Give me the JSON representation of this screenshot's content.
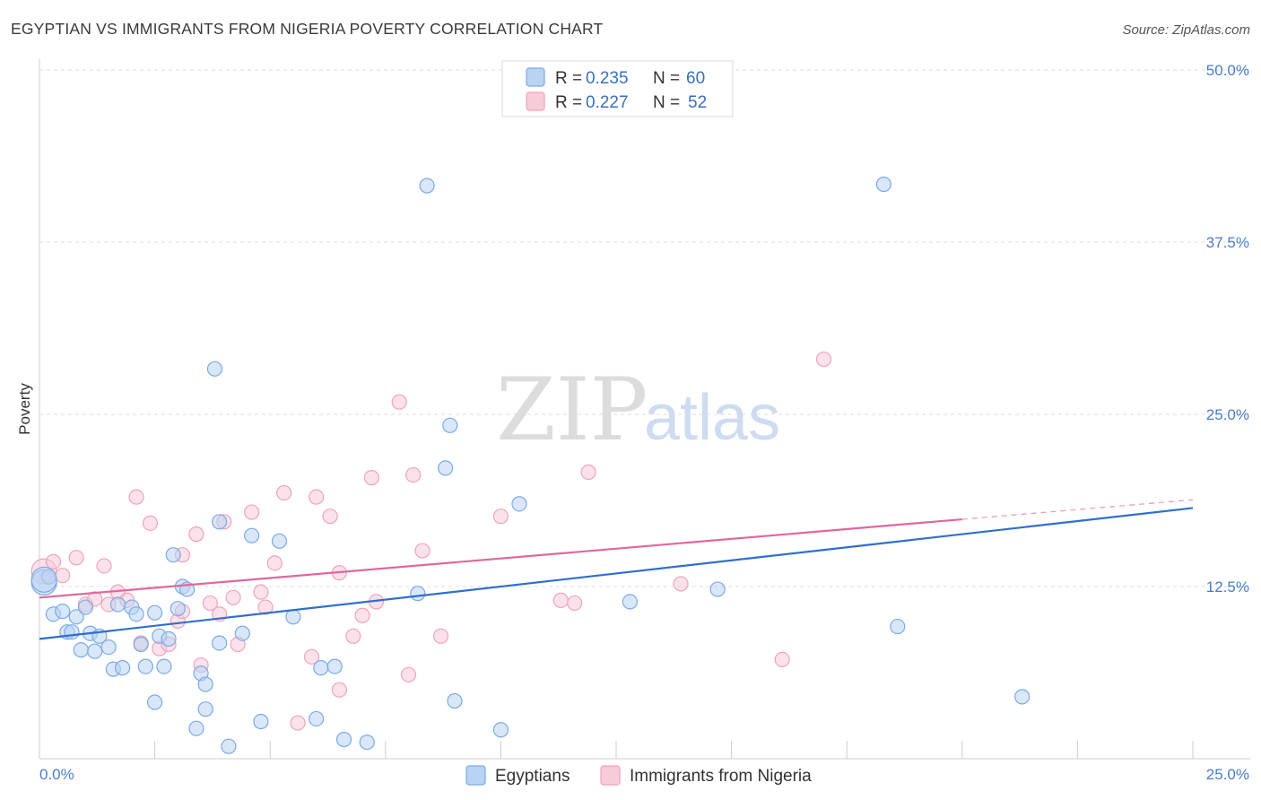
{
  "chart_data": {
    "type": "scatter",
    "title": "EGYPTIAN VS IMMIGRANTS FROM NIGERIA POVERTY CORRELATION CHART",
    "source": "Source: ZipAtlas.com",
    "xlabel": "",
    "ylabel": "Poverty",
    "xlim": [
      0,
      25
    ],
    "ylim": [
      0,
      50
    ],
    "x_tick_labels": {
      "left": "0.0%",
      "right": "25.0%"
    },
    "y_ticks": [
      {
        "value": 50,
        "label": "50.0%"
      },
      {
        "value": 37.5,
        "label": "37.5%"
      },
      {
        "value": 25,
        "label": "25.0%"
      },
      {
        "value": 12.5,
        "label": "12.5%"
      }
    ],
    "watermark": {
      "part1": "ZIP",
      "part2": "atlas"
    },
    "legend": {
      "r_label": "R =",
      "n_label": "N =",
      "entries": [
        {
          "r": "0.235",
          "n": "60"
        },
        {
          "r": "0.227",
          "n": "52"
        }
      ]
    },
    "series": [
      {
        "name": "Egyptians",
        "color": "#7aaae8",
        "fill": "#b9d3f3",
        "line_color": "#2f6fcc",
        "trend": {
          "x0": 0,
          "y0": 8.7,
          "x1": 25,
          "y1": 18.2,
          "dash_from": 25
        },
        "points": [
          [
            0.1,
            12.8
          ],
          [
            0.2,
            13.2
          ],
          [
            0.3,
            10.5
          ],
          [
            0.5,
            10.7
          ],
          [
            0.6,
            9.2
          ],
          [
            0.7,
            9.2
          ],
          [
            0.8,
            10.3
          ],
          [
            0.9,
            7.9
          ],
          [
            1.0,
            11.0
          ],
          [
            1.1,
            9.1
          ],
          [
            1.2,
            7.8
          ],
          [
            1.3,
            8.9
          ],
          [
            1.5,
            8.1
          ],
          [
            1.6,
            6.5
          ],
          [
            1.7,
            11.2
          ],
          [
            1.8,
            6.6
          ],
          [
            2.0,
            11.0
          ],
          [
            2.1,
            10.5
          ],
          [
            2.2,
            8.3
          ],
          [
            2.3,
            6.7
          ],
          [
            2.5,
            10.6
          ],
          [
            2.5,
            4.1
          ],
          [
            2.6,
            8.9
          ],
          [
            2.7,
            6.7
          ],
          [
            2.8,
            8.7
          ],
          [
            2.9,
            14.8
          ],
          [
            3.0,
            10.9
          ],
          [
            3.1,
            12.5
          ],
          [
            3.2,
            12.3
          ],
          [
            3.4,
            2.2
          ],
          [
            3.5,
            6.2
          ],
          [
            3.6,
            3.6
          ],
          [
            3.6,
            5.4
          ],
          [
            3.8,
            28.3
          ],
          [
            3.9,
            17.2
          ],
          [
            3.9,
            8.4
          ],
          [
            4.1,
            0.9
          ],
          [
            4.4,
            9.1
          ],
          [
            4.6,
            16.2
          ],
          [
            4.8,
            2.7
          ],
          [
            5.2,
            15.8
          ],
          [
            5.5,
            10.3
          ],
          [
            6.0,
            2.9
          ],
          [
            6.1,
            6.6
          ],
          [
            6.4,
            6.7
          ],
          [
            6.6,
            1.4
          ],
          [
            7.1,
            1.2
          ],
          [
            8.2,
            12.0
          ],
          [
            8.4,
            41.6
          ],
          [
            8.8,
            21.1
          ],
          [
            8.9,
            24.2
          ],
          [
            9.0,
            4.2
          ],
          [
            10.0,
            2.1
          ],
          [
            10.4,
            18.5
          ],
          [
            12.8,
            11.4
          ],
          [
            14.7,
            12.3
          ],
          [
            18.3,
            41.7
          ],
          [
            18.6,
            9.6
          ],
          [
            21.3,
            4.5
          ],
          [
            0.1,
            13.0
          ]
        ]
      },
      {
        "name": "Immigrants from Nigeria",
        "color": "#f0a3bb",
        "fill": "#f8cbd8",
        "line_color": "#e0689a",
        "trend": {
          "x0": 0,
          "y0": 11.7,
          "x1": 25,
          "y1": 18.8,
          "dash_from": 20
        },
        "points": [
          [
            0.1,
            13.6
          ],
          [
            0.3,
            14.3
          ],
          [
            0.5,
            13.3
          ],
          [
            0.8,
            14.6
          ],
          [
            1.0,
            11.2
          ],
          [
            1.2,
            11.6
          ],
          [
            1.4,
            14.0
          ],
          [
            1.5,
            11.2
          ],
          [
            1.7,
            12.1
          ],
          [
            1.9,
            11.5
          ],
          [
            2.1,
            19.0
          ],
          [
            2.2,
            8.4
          ],
          [
            2.4,
            17.1
          ],
          [
            2.6,
            8.0
          ],
          [
            2.8,
            8.3
          ],
          [
            3.0,
            10.0
          ],
          [
            3.1,
            14.8
          ],
          [
            3.1,
            10.7
          ],
          [
            3.4,
            16.3
          ],
          [
            3.5,
            6.8
          ],
          [
            3.7,
            11.3
          ],
          [
            3.9,
            10.5
          ],
          [
            4.0,
            17.2
          ],
          [
            4.2,
            11.7
          ],
          [
            4.3,
            8.3
          ],
          [
            4.6,
            17.9
          ],
          [
            4.8,
            12.1
          ],
          [
            4.9,
            11.0
          ],
          [
            5.1,
            14.2
          ],
          [
            5.3,
            19.3
          ],
          [
            5.6,
            2.6
          ],
          [
            5.9,
            7.4
          ],
          [
            6.0,
            19.0
          ],
          [
            6.3,
            17.6
          ],
          [
            6.5,
            5.0
          ],
          [
            6.5,
            13.5
          ],
          [
            6.8,
            8.9
          ],
          [
            7.0,
            10.4
          ],
          [
            7.2,
            20.4
          ],
          [
            7.3,
            11.4
          ],
          [
            7.8,
            25.9
          ],
          [
            8.0,
            6.1
          ],
          [
            8.1,
            20.6
          ],
          [
            8.3,
            15.1
          ],
          [
            8.7,
            8.9
          ],
          [
            10.0,
            17.6
          ],
          [
            11.3,
            11.5
          ],
          [
            11.6,
            11.3
          ],
          [
            11.9,
            20.8
          ],
          [
            13.9,
            12.7
          ],
          [
            16.1,
            7.2
          ],
          [
            17.0,
            29.0
          ]
        ]
      }
    ]
  }
}
